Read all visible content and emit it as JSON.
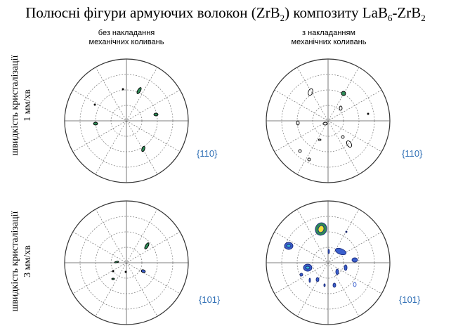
{
  "title": {
    "main": "Полюсні фігури армуючих волокон (ZrB",
    "sub1": "2",
    "mid": ")  композиту LaB",
    "sub2": "6",
    "dash": "-ZrB",
    "sub3": "2"
  },
  "columns": {
    "left": {
      "line1": "без накладання",
      "line2": "механічних коливань"
    },
    "right": {
      "line1": "з накладанням",
      "line2": "механічних коливань"
    }
  },
  "rows": {
    "top": {
      "line1": "швидкість  кристалізації",
      "line2": "1 мм/хв"
    },
    "bottom": {
      "line1": "швидкість  кристалізації",
      "line2": "3 мм/хв"
    }
  },
  "figures": {
    "tl_label": "{110}",
    "tr_label": "{110}",
    "bl_label": "{101}",
    "br_label": "{101}"
  },
  "colors": {
    "miller": "#2f6fb5",
    "grid": "#8a8a8a",
    "blue": "#3a5fcd",
    "green": "#2e8b57",
    "cyan": "#39b5d9",
    "yellow": "#f2e23a"
  }
}
